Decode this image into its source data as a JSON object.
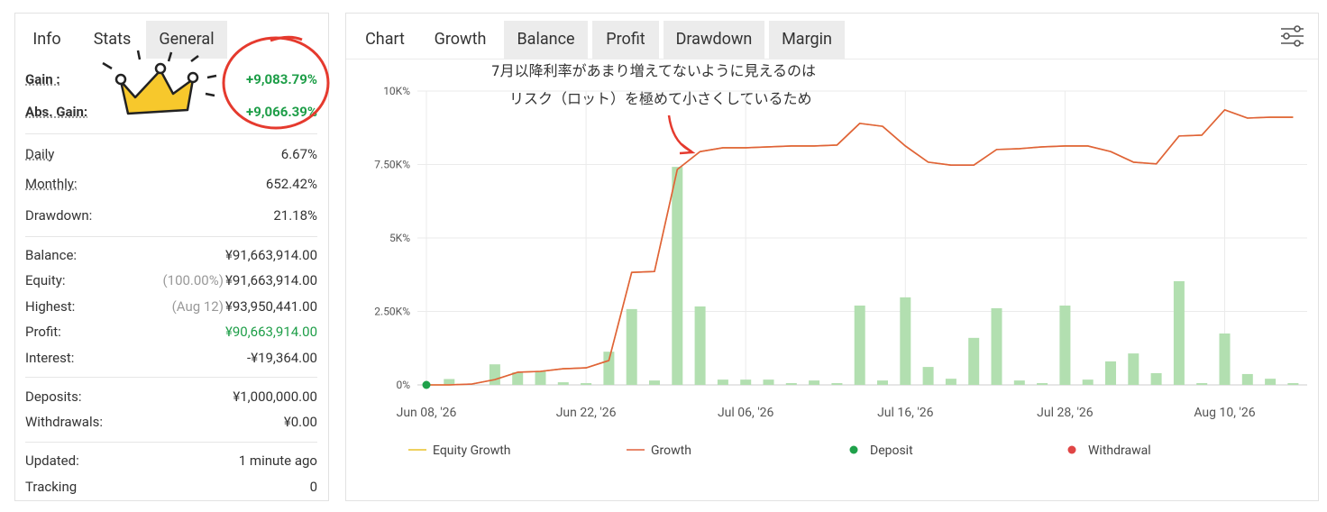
{
  "stats_tabs": [
    "Info",
    "Stats",
    "General"
  ],
  "stats_groups": [
    [
      {
        "label": "Gain :",
        "value": "+9,083.79%",
        "color": "#1e9e48"
      },
      {
        "label": "Abs. Gain:",
        "value": "+9,066.39%",
        "color": "#1e9e48"
      }
    ],
    [
      {
        "label": "Daily",
        "value": "6.67%"
      },
      {
        "label": "Monthly:",
        "value": "652.42%"
      },
      {
        "label": "Drawdown:",
        "value": "21.18%"
      }
    ],
    [
      {
        "label": "Balance:",
        "value": "¥91,663,914.00"
      },
      {
        "label": "Equity:",
        "note": "(100.00%)",
        "value": "¥91,663,914.00"
      },
      {
        "label": "Highest:",
        "note": "(Aug 12)",
        "value": "¥93,950,441.00"
      },
      {
        "label": "Profit:",
        "value": "¥90,663,914.00",
        "color": "#1e9e48"
      },
      {
        "label": "Interest:",
        "value": "-¥19,364.00"
      }
    ],
    [
      {
        "label": "Deposits:",
        "value": "¥1,000,000.00"
      },
      {
        "label": "Withdrawals:",
        "value": "¥0.00"
      }
    ],
    [
      {
        "label": "Updated:",
        "value": "1 minute ago"
      },
      {
        "label": "Tracking",
        "value": "0"
      }
    ]
  ],
  "chart_tabs": [
    "Chart",
    "Growth",
    "Balance",
    "Profit",
    "Drawdown",
    "Margin"
  ],
  "chart_data": {
    "type": "line",
    "annotation": [
      "7月以降利率があまり増えてないように見えるのは",
      "リスク（ロット）を極めて小さくしているため"
    ],
    "categories": [
      "Jun 08, '26",
      null,
      null,
      null,
      null,
      null,
      null,
      "Jun 22, '26",
      null,
      null,
      null,
      null,
      null,
      null,
      "Jul 06, '26",
      null,
      null,
      null,
      null,
      null,
      null,
      "Jul 16, '26",
      null,
      null,
      null,
      null,
      null,
      null,
      "Jul 28, '26",
      null,
      null,
      null,
      null,
      null,
      null,
      "Aug 10, '26",
      null,
      null,
      null
    ],
    "ylim": [
      0,
      10000
    ],
    "yticks": [
      {
        "value": 0,
        "label": "0%"
      },
      {
        "value": 2500,
        "label": "2.50K%"
      },
      {
        "value": 5000,
        "label": "5K%"
      },
      {
        "value": 7500,
        "label": "7.50K%"
      },
      {
        "value": 10000,
        "label": "10K%"
      }
    ],
    "grid": true,
    "bars": {
      "color": "#b2dfb0",
      "values": [
        null,
        200,
        null,
        700,
        430,
        460,
        90,
        60,
        1130,
        2580,
        150,
        7420,
        2670,
        180,
        180,
        180,
        60,
        150,
        60,
        2700,
        150,
        2980,
        610,
        210,
        1600,
        2610,
        150,
        60,
        2700,
        180,
        800,
        1070,
        400,
        3530,
        60,
        1750,
        370,
        210,
        60
      ]
    },
    "series": [
      {
        "name": "Equity Growth",
        "color": "#e8c22a",
        "mark": "line",
        "values": [
          0,
          0,
          30,
          180,
          430,
          460,
          550,
          580,
          830,
          3830,
          3860,
          7330,
          7940,
          8070,
          8070,
          8100,
          8130,
          8130,
          8160,
          8900,
          8800,
          8130,
          7580,
          7480,
          7480,
          8010,
          8040,
          8100,
          8130,
          8130,
          7940,
          7580,
          7520,
          8470,
          8500,
          9360,
          9080,
          9110,
          9110
        ]
      },
      {
        "name": "Growth",
        "color": "#e0603c",
        "mark": "line",
        "values": [
          0,
          0,
          30,
          180,
          430,
          460,
          550,
          580,
          830,
          3830,
          3860,
          7330,
          7940,
          8070,
          8070,
          8100,
          8130,
          8130,
          8160,
          8900,
          8800,
          8130,
          7580,
          7480,
          7480,
          8010,
          8040,
          8100,
          8130,
          8130,
          7940,
          7580,
          7520,
          8470,
          8500,
          9360,
          9080,
          9110,
          9110
        ]
      },
      {
        "name": "Deposit",
        "color": "#1fa14a",
        "mark": "dot",
        "values": [
          0,
          null,
          null,
          null,
          null,
          null,
          null,
          null,
          null,
          null,
          null,
          null,
          null,
          null,
          null,
          null,
          null,
          null,
          null,
          null,
          null,
          null,
          null,
          null,
          null,
          null,
          null,
          null,
          null,
          null,
          null,
          null,
          null,
          null,
          null,
          null,
          null,
          null,
          null
        ]
      },
      {
        "name": "Withdrawal",
        "color": "#e04545",
        "mark": "dot",
        "values": [
          null,
          null,
          null,
          null,
          null,
          null,
          null,
          null,
          null,
          null,
          null,
          null,
          null,
          null,
          null,
          null,
          null,
          null,
          null,
          null,
          null,
          null,
          null,
          null,
          null,
          null,
          null,
          null,
          null,
          null,
          null,
          null,
          null,
          null,
          null,
          null,
          null,
          null,
          null
        ]
      }
    ]
  }
}
